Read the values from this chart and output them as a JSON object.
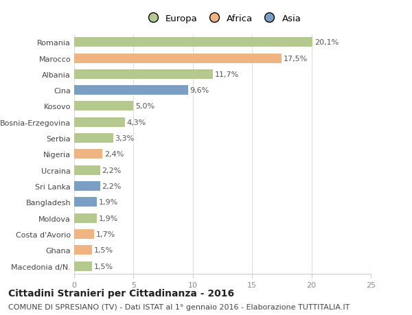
{
  "categories": [
    "Macedonia d/N.",
    "Ghana",
    "Costa d'Avorio",
    "Moldova",
    "Bangladesh",
    "Sri Lanka",
    "Ucraina",
    "Nigeria",
    "Serbia",
    "Bosnia-Erzegovina",
    "Kosovo",
    "Cina",
    "Albania",
    "Marocco",
    "Romania"
  ],
  "values": [
    1.5,
    1.5,
    1.7,
    1.9,
    1.9,
    2.2,
    2.2,
    2.4,
    3.3,
    4.3,
    5.0,
    9.6,
    11.7,
    17.5,
    20.1
  ],
  "labels": [
    "1,5%",
    "1,5%",
    "1,7%",
    "1,9%",
    "1,9%",
    "2,2%",
    "2,2%",
    "2,4%",
    "3,3%",
    "4,3%",
    "5,0%",
    "9,6%",
    "11,7%",
    "17,5%",
    "20,1%"
  ],
  "colors": [
    "#b5c98e",
    "#f0b482",
    "#f0b482",
    "#b5c98e",
    "#7b9fc4",
    "#7b9fc4",
    "#b5c98e",
    "#f0b482",
    "#b5c98e",
    "#b5c98e",
    "#b5c98e",
    "#7b9fc4",
    "#b5c98e",
    "#f0b482",
    "#b5c98e"
  ],
  "legend_labels": [
    "Europa",
    "Africa",
    "Asia"
  ],
  "legend_colors": [
    "#b5c98e",
    "#f0b482",
    "#7b9fc4"
  ],
  "title": "Cittadini Stranieri per Cittadinanza - 2016",
  "subtitle": "COMUNE DI SPRESIANO (TV) - Dati ISTAT al 1° gennaio 2016 - Elaborazione TUTTITALIA.IT",
  "xlim": [
    0,
    25
  ],
  "xticks": [
    0,
    5,
    10,
    15,
    20,
    25
  ],
  "background_color": "#ffffff",
  "bar_height": 0.6,
  "title_fontsize": 10,
  "subtitle_fontsize": 8,
  "label_fontsize": 8,
  "tick_fontsize": 8,
  "legend_fontsize": 9.5
}
